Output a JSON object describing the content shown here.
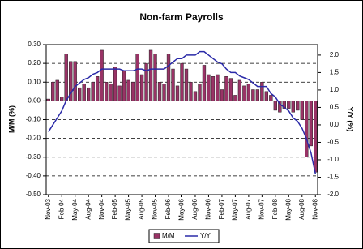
{
  "chart_data": {
    "type": "bar-line",
    "title": "Non-farm Payrolls",
    "y_label": "M/M (%)",
    "y2_label": "Y/Y (%)",
    "categories": [
      "Nov-03",
      null,
      null,
      "Feb-04",
      null,
      null,
      "May-04",
      null,
      null,
      "Aug-04",
      null,
      null,
      "Nov-04",
      null,
      null,
      "Feb-05",
      null,
      null,
      "May-05",
      null,
      null,
      "Aug-05",
      null,
      null,
      "Nov-05",
      null,
      null,
      "Feb-06",
      null,
      null,
      "May-06",
      null,
      null,
      "Aug-06",
      null,
      null,
      "Nov-06",
      null,
      null,
      "Feb-07",
      null,
      null,
      "May-07",
      null,
      null,
      "Aug-07",
      null,
      null,
      "Nov-07",
      null,
      null,
      "Feb-08",
      null,
      null,
      "May-08",
      null,
      null,
      "Aug-08",
      null,
      null,
      "Nov-08"
    ],
    "series": [
      {
        "name": "M/M",
        "type": "bar",
        "color": "#993366",
        "values": [
          0.01,
          0.1,
          0.11,
          0.02,
          0.25,
          0.21,
          0.21,
          0.07,
          0.09,
          0.07,
          0.1,
          0.13,
          0.27,
          0.1,
          0.09,
          0.18,
          0.08,
          0.16,
          0.11,
          0.1,
          0.25,
          0.14,
          0.2,
          0.27,
          0.25,
          0.1,
          0.09,
          0.25,
          0.17,
          0.08,
          0.2,
          0.17,
          0.1,
          0.05,
          0.09,
          0.19,
          0.14,
          0.13,
          0.14,
          0.06,
          0.13,
          0.12,
          0.03,
          0.11,
          0.08,
          0.09,
          0.06,
          0.06,
          0.1,
          0.05,
          0.03,
          -0.05,
          -0.06,
          -0.04,
          -0.04,
          -0.06,
          -0.05,
          -0.1,
          -0.3,
          -0.24,
          -0.38
        ]
      },
      {
        "name": "Y/Y",
        "type": "line",
        "axis": "y2",
        "color": "#2a2aa8",
        "values": [
          -0.2,
          0.0,
          0.2,
          0.4,
          0.7,
          0.9,
          1.1,
          1.2,
          1.3,
          1.35,
          1.45,
          1.5,
          1.6,
          1.6,
          1.6,
          1.6,
          1.6,
          1.55,
          1.55,
          1.55,
          1.6,
          1.6,
          1.55,
          1.6,
          1.6,
          1.6,
          1.6,
          1.7,
          1.8,
          1.9,
          1.9,
          2.0,
          2.0,
          2.0,
          2.1,
          2.1,
          2.0,
          1.9,
          1.8,
          1.75,
          1.6,
          1.5,
          1.5,
          1.4,
          1.35,
          1.3,
          1.2,
          1.1,
          1.1,
          1.1,
          0.9,
          0.8,
          0.6,
          0.5,
          0.4,
          0.2,
          0.1,
          -0.1,
          -0.4,
          -0.8,
          -1.4
        ]
      }
    ],
    "ylim": [
      -0.5,
      0.3
    ],
    "yticks": [
      {
        "value": 0.3,
        "label": "0.30"
      },
      {
        "value": 0.2,
        "label": "0.20"
      },
      {
        "value": 0.1,
        "label": "0.10"
      },
      {
        "value": 0,
        "label": "0.00"
      },
      {
        "value": -0.1,
        "label": "-0.10"
      },
      {
        "value": -0.2,
        "label": "-0.20"
      },
      {
        "value": -0.3,
        "label": "-0.30"
      },
      {
        "value": -0.4,
        "label": "-0.40"
      },
      {
        "value": -0.5,
        "label": "-0.50"
      }
    ],
    "y2lim": [
      -2.0,
      2.3
    ],
    "y2ticks": [
      {
        "value": 2,
        "label": "2.0"
      },
      1.5,
      {
        "value": 1,
        "label": "1.0"
      },
      0.5,
      {
        "value": 0,
        "label": "0.0"
      },
      -0.5,
      {
        "value": -1,
        "label": "-1.0"
      },
      -1.5,
      {
        "value": -2,
        "label": "-2.0"
      }
    ],
    "grid": true,
    "legend": "bottom"
  }
}
